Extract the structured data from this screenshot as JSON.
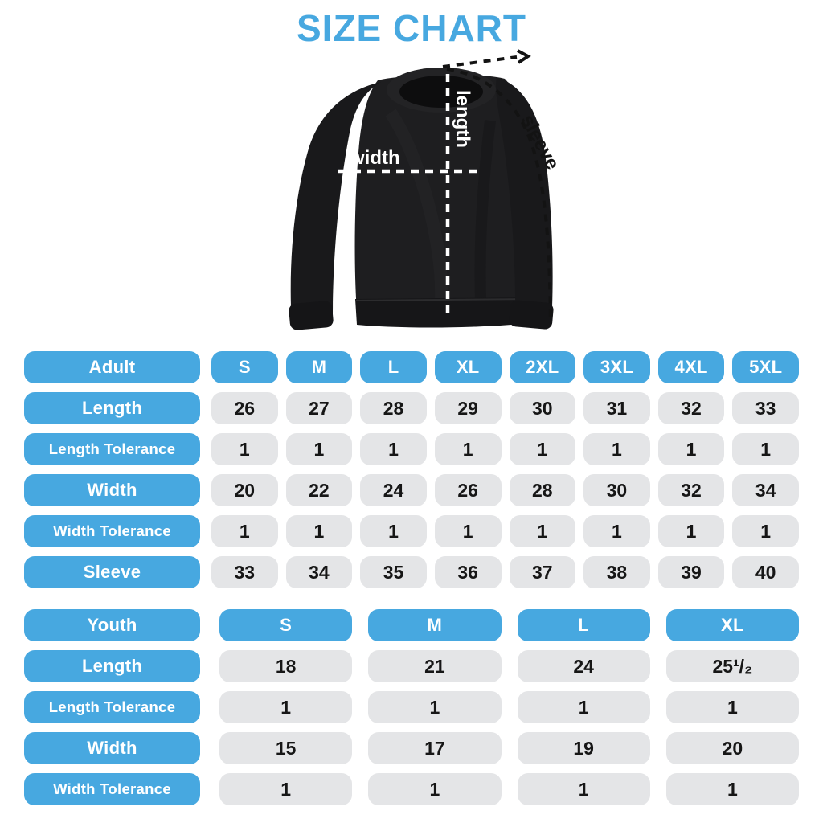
{
  "title": "SIZE CHART",
  "diagram": {
    "width_label": "width",
    "length_label": "length",
    "sleeve_label": "sleeve"
  },
  "adult_table": {
    "header": {
      "label": "Adult",
      "sizes": [
        "S",
        "M",
        "L",
        "XL",
        "2XL",
        "3XL",
        "4XL",
        "5XL"
      ]
    },
    "rows": [
      {
        "label": "Length",
        "values": [
          "26",
          "27",
          "28",
          "29",
          "30",
          "31",
          "32",
          "33"
        ]
      },
      {
        "label": "Length Tolerance",
        "values": [
          "1",
          "1",
          "1",
          "1",
          "1",
          "1",
          "1",
          "1"
        ]
      },
      {
        "label": "Width",
        "values": [
          "20",
          "22",
          "24",
          "26",
          "28",
          "30",
          "32",
          "34"
        ]
      },
      {
        "label": "Width Tolerance",
        "values": [
          "1",
          "1",
          "1",
          "1",
          "1",
          "1",
          "1",
          "1"
        ]
      },
      {
        "label": "Sleeve",
        "values": [
          "33",
          "34",
          "35",
          "36",
          "37",
          "38",
          "39",
          "40"
        ]
      }
    ]
  },
  "youth_table": {
    "header": {
      "label": "Youth",
      "sizes": [
        "S",
        "M",
        "L",
        "XL"
      ]
    },
    "rows": [
      {
        "label": "Length",
        "values": [
          "18",
          "21",
          "24",
          "25¹/₂"
        ]
      },
      {
        "label": "Length Tolerance",
        "values": [
          "1",
          "1",
          "1",
          "1"
        ]
      },
      {
        "label": "Width",
        "values": [
          "15",
          "17",
          "19",
          "20"
        ]
      },
      {
        "label": "Width Tolerance",
        "values": [
          "1",
          "1",
          "1",
          "1"
        ]
      }
    ]
  },
  "colors": {
    "accent_blue": "#47A8E0",
    "cell_gray": "#E4E5E7",
    "value_text": "#161616",
    "shirt_black": "#1B1B1D",
    "annotation_white": "#FFFFFF",
    "annotation_black": "#131313"
  }
}
